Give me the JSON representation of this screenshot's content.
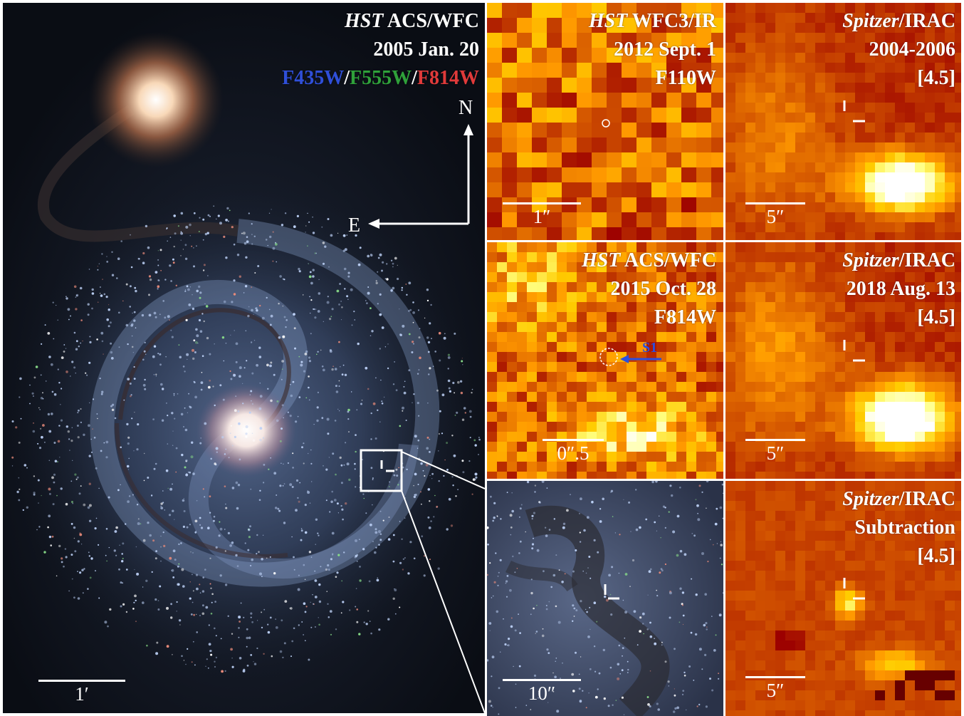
{
  "main": {
    "title_instr": "HST",
    "title_rest": " ACS/WFC",
    "date": "2005 Jan. 20",
    "filters": {
      "b": "F435W",
      "sep1": "/",
      "g": "F555W",
      "sep2": "/",
      "r": "F814W"
    },
    "filter_colors": {
      "b": "#2f4fd8",
      "g": "#2fa13a",
      "r": "#e03a3a"
    },
    "compass_n": "N",
    "compass_e": "E",
    "scale": "1′"
  },
  "zoom": {
    "scale": "10″"
  },
  "wfc3": {
    "instr": "HST",
    "rest": " WFC3/IR",
    "date": "2012 Sept. 1",
    "filter": "F110W",
    "scale": "1″"
  },
  "acs2015": {
    "instr": "HST",
    "rest": " ACS/WFC",
    "date": "2015 Oct. 28",
    "filter": "F814W",
    "scale": "0″.5",
    "source": "S1",
    "source_color": "#2a4fe0"
  },
  "irac1": {
    "instr": "Spitzer",
    "rest": "/IRAC",
    "date": "2004-2006",
    "band": "[4.5]",
    "scale": "5″"
  },
  "irac2": {
    "instr": "Spitzer",
    "rest": "/IRAC",
    "date": "2018 Aug. 13",
    "band": "[4.5]",
    "scale": "5″"
  },
  "irac3": {
    "instr": "Spitzer",
    "rest": "/IRAC",
    "date": "Subtraction",
    "band": "[4.5]",
    "scale": "5″"
  }
}
